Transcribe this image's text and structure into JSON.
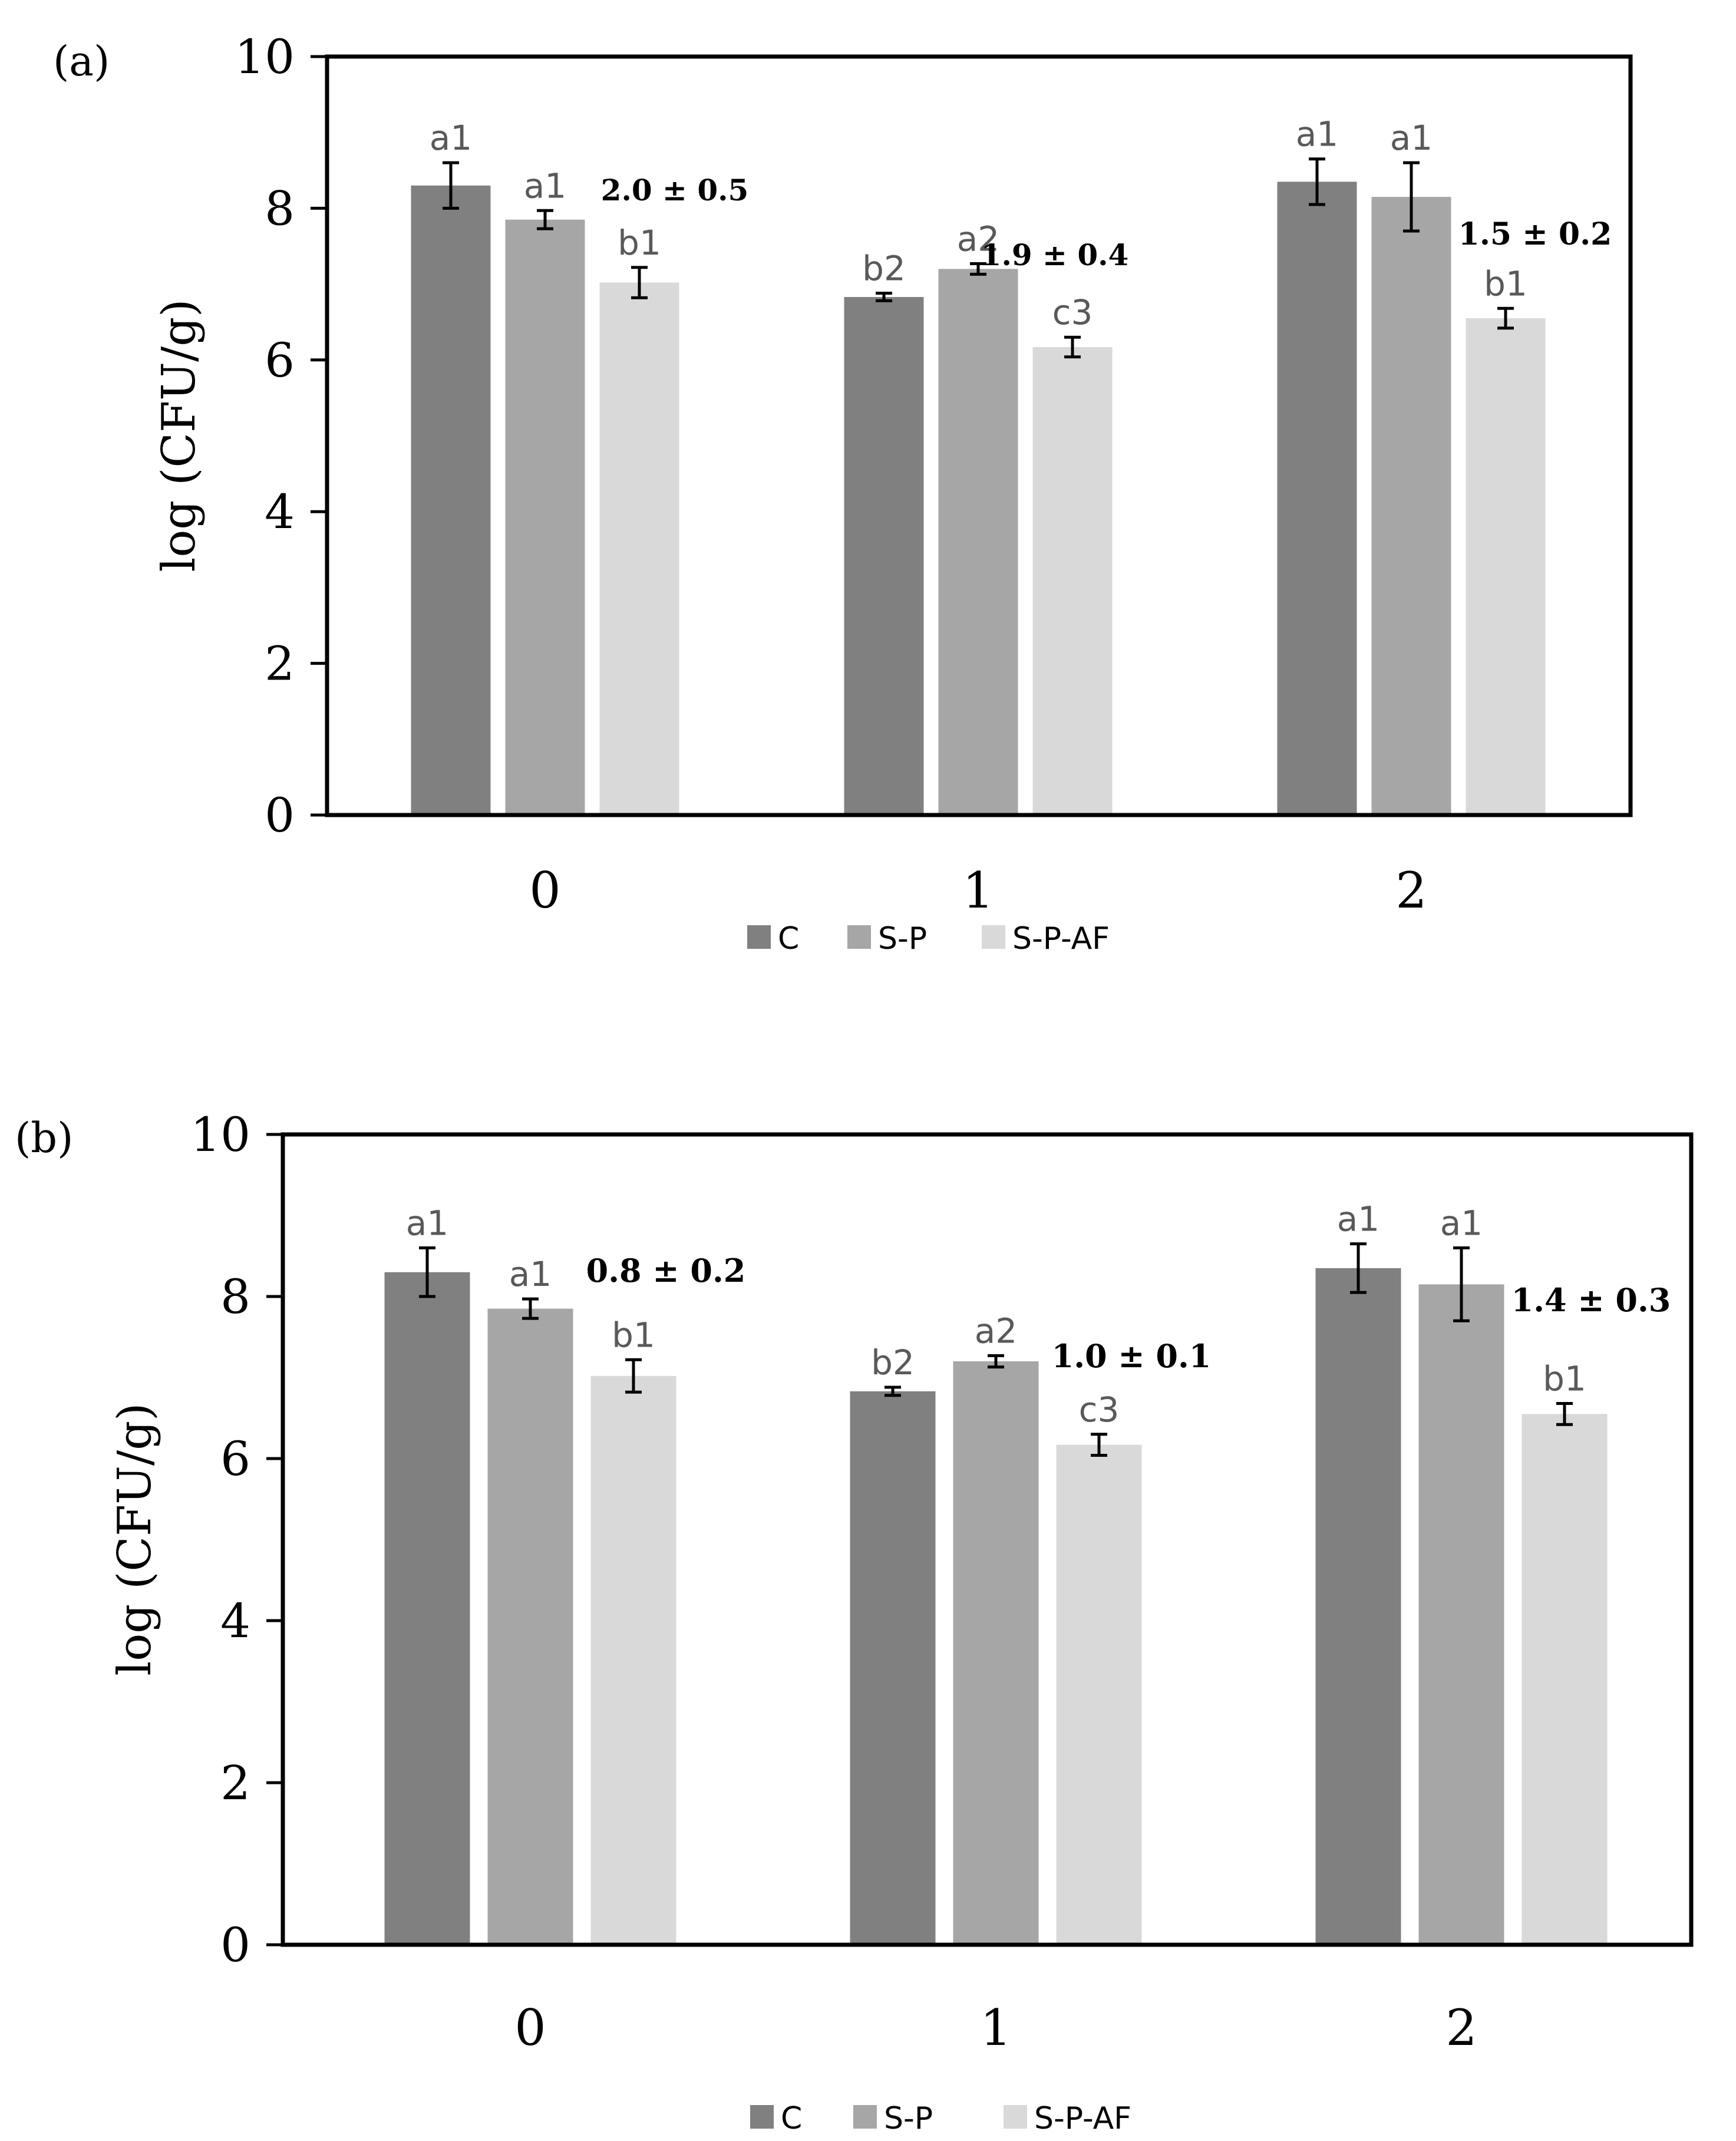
{
  "figure": {
    "panels": [
      {
        "id": "a",
        "panel_label": "(a)",
        "chart_type": "bar",
        "ylabel": "log (CFU/g)",
        "ylim": [
          0,
          10
        ],
        "yticks": [
          "0",
          "2",
          "4",
          "6",
          "8",
          "10"
        ],
        "categories": [
          "0",
          "1",
          "2"
        ],
        "series": [
          {
            "name": "C",
            "color": "#808080",
            "values": [
              8.3,
              6.83,
              8.35
            ],
            "errors": [
              0.3,
              0.05,
              0.3
            ],
            "labels": [
              "a1",
              "b2",
              "a1"
            ]
          },
          {
            "name": "S-P",
            "color": "#a6a6a6",
            "values": [
              7.85,
              7.2,
              8.15
            ],
            "errors": [
              0.12,
              0.07,
              0.45
            ],
            "labels": [
              "a1",
              "a2",
              "a1"
            ]
          },
          {
            "name": "S-P-AF",
            "color": "#d9d9d9",
            "values": [
              7.02,
              6.17,
              6.55
            ],
            "errors": [
              0.2,
              0.13,
              0.13
            ],
            "labels": [
              "b1",
              "c3",
              "b1"
            ]
          }
        ],
        "annotations": [
          "2.0 ± 0.5",
          "1.9 ± 0.4",
          "1.5 ± 0.2"
        ]
      },
      {
        "id": "b",
        "panel_label": "(b)",
        "chart_type": "bar",
        "ylabel": "log (CFU/g)",
        "ylim": [
          0,
          10
        ],
        "yticks": [
          "0",
          "2",
          "4",
          "6",
          "8",
          "10"
        ],
        "categories": [
          "0",
          "1",
          "2"
        ],
        "series": [
          {
            "name": "C",
            "color": "#808080",
            "values": [
              8.3,
              6.83,
              8.35
            ],
            "errors": [
              0.3,
              0.05,
              0.3
            ],
            "labels": [
              "a1",
              "b2",
              "a1"
            ]
          },
          {
            "name": "S-P",
            "color": "#a6a6a6",
            "values": [
              7.85,
              7.2,
              8.15
            ],
            "errors": [
              0.12,
              0.07,
              0.45
            ],
            "labels": [
              "a1",
              "a2",
              "a1"
            ]
          },
          {
            "name": "S-P-AF",
            "color": "#d9d9d9",
            "values": [
              7.02,
              6.17,
              6.55
            ],
            "errors": [
              0.2,
              0.13,
              0.13
            ],
            "labels": [
              "b1",
              "c3",
              "b1"
            ]
          }
        ],
        "annotations": [
          "0.8 ± 0.2",
          "1.0 ± 0.1",
          "1.4 ± 0.3"
        ]
      }
    ]
  },
  "chart_data": [
    {
      "type": "bar",
      "title": "(a)",
      "xlabel": "",
      "ylabel": "log (CFU/g)",
      "ylim": [
        0,
        10
      ],
      "categories": [
        "0",
        "1",
        "2"
      ],
      "series": [
        {
          "name": "C",
          "values": [
            8.3,
            6.83,
            8.35
          ]
        },
        {
          "name": "S-P",
          "values": [
            7.85,
            7.2,
            8.15
          ]
        },
        {
          "name": "S-P-AF",
          "values": [
            7.02,
            6.17,
            6.55
          ]
        }
      ],
      "legend": "bottom-center"
    },
    {
      "type": "bar",
      "title": "(b)",
      "xlabel": "",
      "ylabel": "log (CFU/g)",
      "ylim": [
        0,
        10
      ],
      "categories": [
        "0",
        "1",
        "2"
      ],
      "series": [
        {
          "name": "C",
          "values": [
            8.3,
            6.83,
            8.35
          ]
        },
        {
          "name": "S-P",
          "values": [
            7.85,
            7.2,
            8.15
          ]
        },
        {
          "name": "S-P-AF",
          "values": [
            7.02,
            6.17,
            6.55
          ]
        }
      ],
      "legend": "bottom-center"
    }
  ]
}
